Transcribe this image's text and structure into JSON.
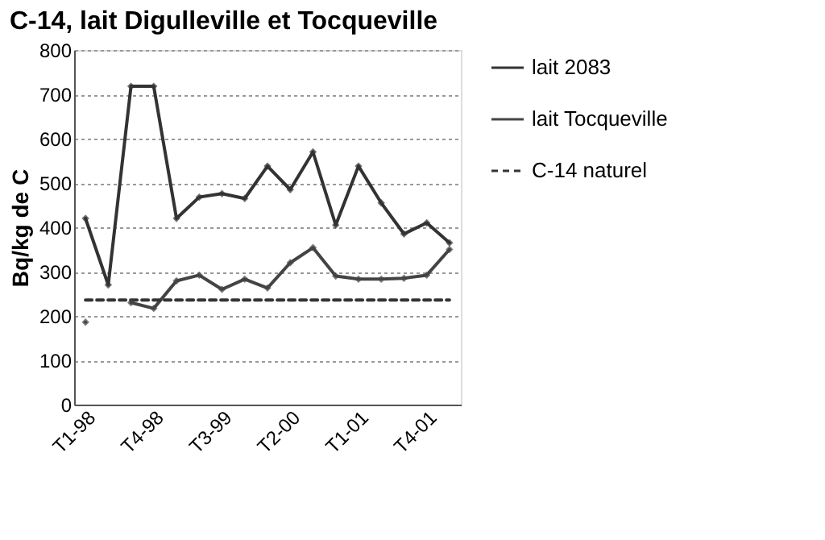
{
  "chart_data": {
    "type": "line",
    "title": "C-14, lait Digulleville et Tocqueville",
    "ylabel": "Bq/kg de C",
    "categories": [
      "T1-98",
      null,
      null,
      "T4-98",
      null,
      null,
      "T3-99",
      null,
      null,
      "T2-00",
      null,
      null,
      "T1-01",
      null,
      null,
      "T4-01",
      null
    ],
    "series": [
      {
        "name": "lait 2083",
        "color": "#333333",
        "marker": "diamond",
        "line_style": "solid",
        "values": [
          420,
          270,
          718,
          718,
          420,
          468,
          476,
          465,
          538,
          485,
          570,
          405,
          538,
          455,
          385,
          410,
          365
        ]
      },
      {
        "name": "lait Tocqueville",
        "color": "#444444",
        "marker": "diamond",
        "line_style": "solid",
        "values": [
          186,
          null,
          230,
          217,
          279,
          292,
          260,
          283,
          263,
          320,
          354,
          290,
          283,
          283,
          285,
          292,
          350
        ]
      },
      {
        "name": "C-14 naturel",
        "color": "#333333",
        "marker": "none",
        "line_style": "dashed",
        "values": [
          236,
          236,
          236,
          236,
          236,
          236,
          236,
          236,
          236,
          236,
          236,
          236,
          236,
          236,
          236,
          236,
          236
        ]
      }
    ],
    "ylim": [
      0,
      800
    ],
    "yticks": [
      0,
      100,
      200,
      300,
      400,
      500,
      600,
      700,
      800
    ],
    "grid": "y",
    "legend": "right"
  }
}
